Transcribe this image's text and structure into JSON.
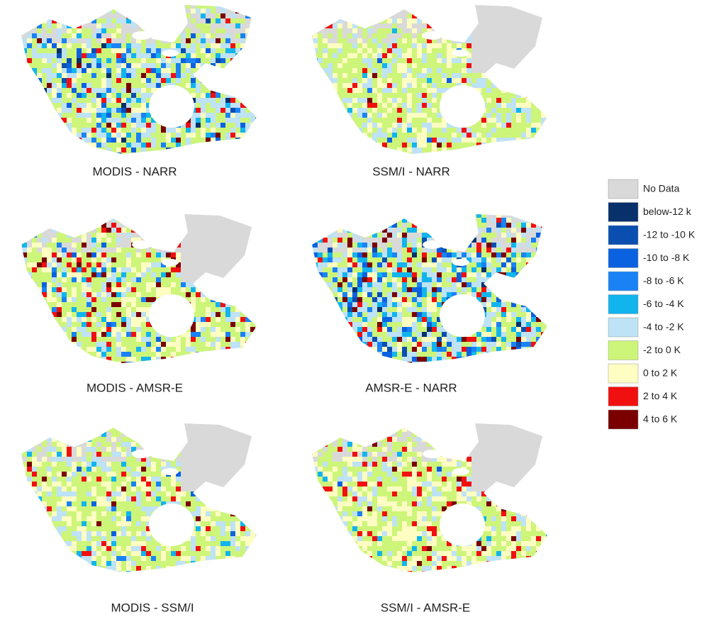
{
  "panels": [
    {
      "label": "MODIS - NARR"
    },
    {
      "label": "SSM/I - NARR"
    },
    {
      "label": "MODIS - AMSR-E"
    },
    {
      "label": "AMSR-E - NARR"
    },
    {
      "label": "MODIS - SSM/I"
    },
    {
      "label": "SSM/I - AMSR-E"
    }
  ],
  "legend": {
    "items": [
      {
        "label": "No Data",
        "color": "#d9d9d9"
      },
      {
        "label": "below-12 k",
        "color": "#08306b"
      },
      {
        "label": "-12 to -10 K",
        "color": "#0a4fb0"
      },
      {
        "label": "-10 to -8 K",
        "color": "#0b62e0"
      },
      {
        "label": "-8 to -6 K",
        "color": "#1a82f5"
      },
      {
        "label": "-6 to -4 K",
        "color": "#12b4ee"
      },
      {
        "label": "-4 to -2 K",
        "color": "#bee2f6"
      },
      {
        "label": "-2 to 0 K",
        "color": "#cdf57a"
      },
      {
        "label": "0 to 2 K",
        "color": "#fefdc2"
      },
      {
        "label": "2 to 4 K",
        "color": "#f01010"
      },
      {
        "label": "4 to 6 K",
        "color": "#7a0000"
      }
    ]
  }
}
